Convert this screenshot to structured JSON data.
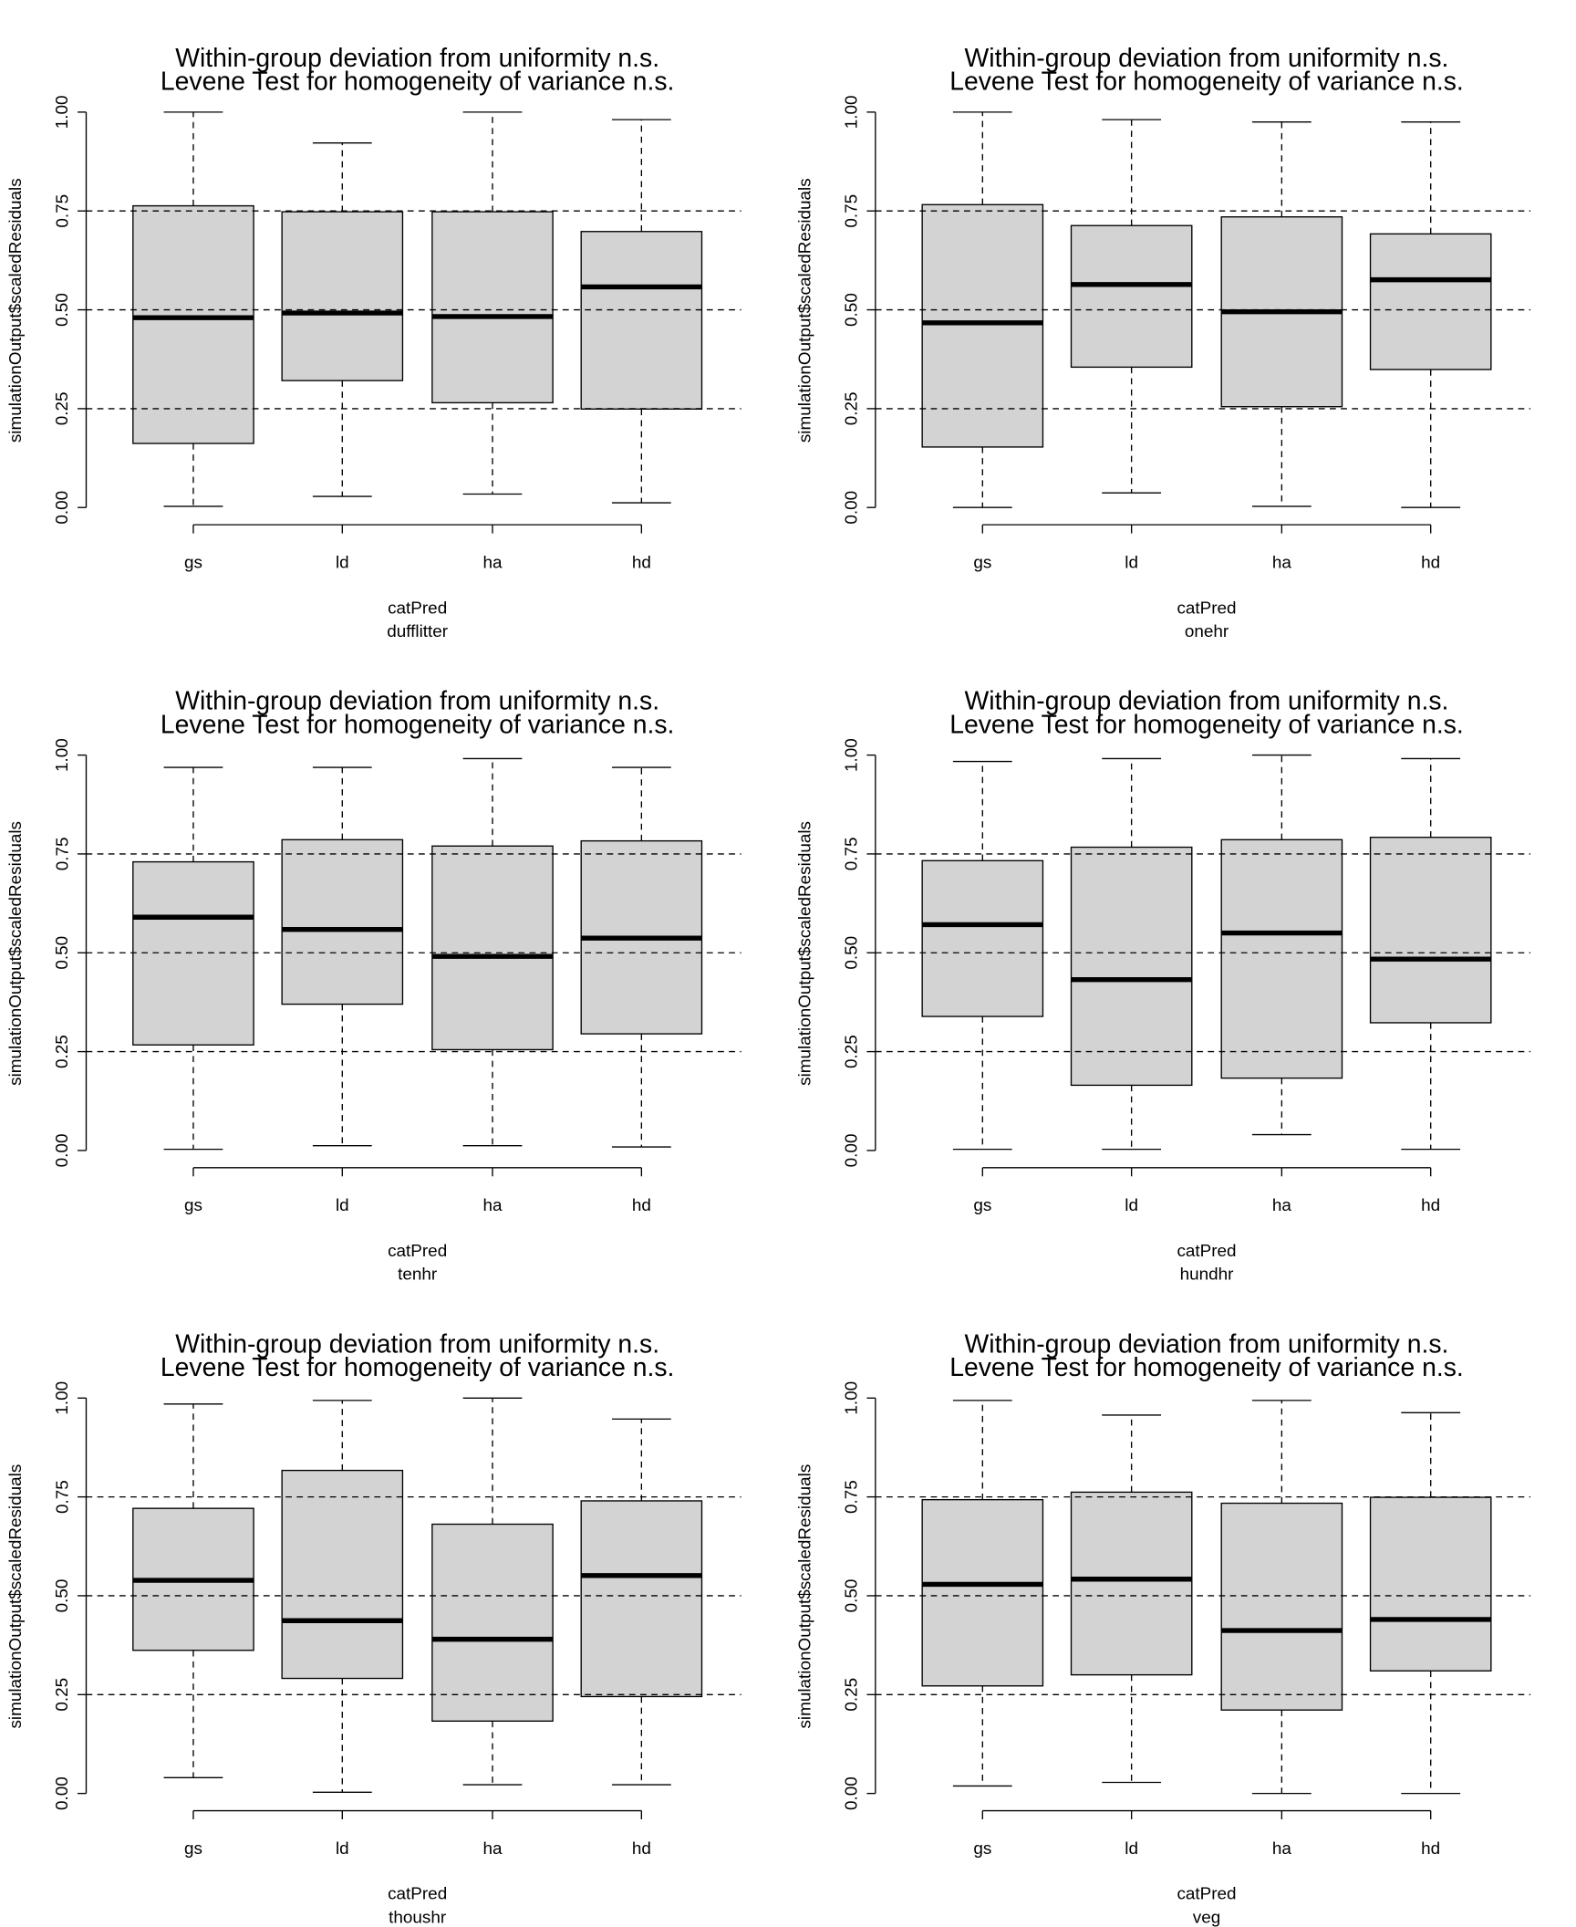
{
  "chart_data": [
    {
      "type": "box",
      "title": [
        "Within-group deviation from uniformity n.s.",
        "Levene Test for homogeneity of variance n.s."
      ],
      "xlabel": "catPred",
      "subtitle": "dufflitter",
      "ylabel": "simulationOutput$scaledResiduals",
      "categories": [
        "gs",
        "ld",
        "ha",
        "hd"
      ],
      "yticks": [
        "0.00",
        "0.25",
        "0.50",
        "0.75",
        "1.00"
      ],
      "ylim": [
        0,
        1
      ],
      "reference_lines": [
        0.25,
        0.5,
        0.75
      ],
      "boxes": [
        {
          "min": 0.003,
          "q1": 0.162,
          "median": 0.48,
          "q3": 0.763,
          "max": 1.0
        },
        {
          "min": 0.028,
          "q1": 0.321,
          "median": 0.492,
          "q3": 0.748,
          "max": 0.922
        },
        {
          "min": 0.034,
          "q1": 0.265,
          "median": 0.483,
          "q3": 0.748,
          "max": 1.0
        },
        {
          "min": 0.012,
          "q1": 0.249,
          "median": 0.558,
          "q3": 0.698,
          "max": 0.981
        }
      ]
    },
    {
      "type": "box",
      "title": [
        "Within-group deviation from uniformity n.s.",
        "Levene Test for homogeneity of variance n.s."
      ],
      "xlabel": "catPred",
      "subtitle": "onehr",
      "ylabel": "simulationOutput$scaledResiduals",
      "categories": [
        "gs",
        "ld",
        "ha",
        "hd"
      ],
      "yticks": [
        "0.00",
        "0.25",
        "0.50",
        "0.75",
        "1.00"
      ],
      "ylim": [
        0,
        1
      ],
      "reference_lines": [
        0.25,
        0.5,
        0.75
      ],
      "boxes": [
        {
          "min": 0.0,
          "q1": 0.153,
          "median": 0.467,
          "q3": 0.766,
          "max": 1.0
        },
        {
          "min": 0.037,
          "q1": 0.355,
          "median": 0.564,
          "q3": 0.713,
          "max": 0.981
        },
        {
          "min": 0.003,
          "q1": 0.255,
          "median": 0.495,
          "q3": 0.735,
          "max": 0.975
        },
        {
          "min": 0.0,
          "q1": 0.349,
          "median": 0.576,
          "q3": 0.692,
          "max": 0.975
        }
      ]
    },
    {
      "type": "box",
      "title": [
        "Within-group deviation from uniformity n.s.",
        "Levene Test for homogeneity of variance n.s."
      ],
      "xlabel": "catPred",
      "subtitle": "tenhr",
      "ylabel": "simulationOutput$scaledResiduals",
      "categories": [
        "gs",
        "ld",
        "ha",
        "hd"
      ],
      "yticks": [
        "0.00",
        "0.25",
        "0.50",
        "0.75",
        "1.00"
      ],
      "ylim": [
        0,
        1
      ],
      "reference_lines": [
        0.25,
        0.5,
        0.75
      ],
      "boxes": [
        {
          "min": 0.003,
          "q1": 0.267,
          "median": 0.59,
          "q3": 0.73,
          "max": 0.969
        },
        {
          "min": 0.012,
          "q1": 0.37,
          "median": 0.559,
          "q3": 0.786,
          "max": 0.969
        },
        {
          "min": 0.012,
          "q1": 0.255,
          "median": 0.491,
          "q3": 0.77,
          "max": 0.991
        },
        {
          "min": 0.009,
          "q1": 0.295,
          "median": 0.537,
          "q3": 0.783,
          "max": 0.969
        }
      ]
    },
    {
      "type": "box",
      "title": [
        "Within-group deviation from uniformity n.s.",
        "Levene Test for homogeneity of variance n.s."
      ],
      "xlabel": "catPred",
      "subtitle": "hundhr",
      "ylabel": "simulationOutput$scaledResiduals",
      "categories": [
        "gs",
        "ld",
        "ha",
        "hd"
      ],
      "yticks": [
        "0.00",
        "0.25",
        "0.50",
        "0.75",
        "1.00"
      ],
      "ylim": [
        0,
        1
      ],
      "reference_lines": [
        0.25,
        0.5,
        0.75
      ],
      "boxes": [
        {
          "min": 0.003,
          "q1": 0.339,
          "median": 0.571,
          "q3": 0.733,
          "max": 0.984
        },
        {
          "min": 0.003,
          "q1": 0.165,
          "median": 0.432,
          "q3": 0.767,
          "max": 0.991
        },
        {
          "min": 0.04,
          "q1": 0.183,
          "median": 0.55,
          "q3": 0.786,
          "max": 1.0
        },
        {
          "min": 0.003,
          "q1": 0.323,
          "median": 0.484,
          "q3": 0.792,
          "max": 0.991
        }
      ]
    },
    {
      "type": "box",
      "title": [
        "Within-group deviation from uniformity n.s.",
        "Levene Test for homogeneity of variance n.s."
      ],
      "xlabel": "catPred",
      "subtitle": "thoushr",
      "ylabel": "simulationOutput$scaledResiduals",
      "categories": [
        "gs",
        "ld",
        "ha",
        "hd"
      ],
      "yticks": [
        "0.00",
        "0.25",
        "0.50",
        "0.75",
        "1.00"
      ],
      "ylim": [
        0,
        1
      ],
      "reference_lines": [
        0.25,
        0.5,
        0.75
      ],
      "boxes": [
        {
          "min": 0.04,
          "q1": 0.362,
          "median": 0.539,
          "q3": 0.721,
          "max": 0.985
        },
        {
          "min": 0.003,
          "q1": 0.291,
          "median": 0.437,
          "q3": 0.817,
          "max": 0.994
        },
        {
          "min": 0.022,
          "q1": 0.183,
          "median": 0.39,
          "q3": 0.681,
          "max": 1.0
        },
        {
          "min": 0.022,
          "q1": 0.245,
          "median": 0.551,
          "q3": 0.74,
          "max": 0.947
        }
      ]
    },
    {
      "type": "box",
      "title": [
        "Within-group deviation from uniformity n.s.",
        "Levene Test for homogeneity of variance n.s."
      ],
      "xlabel": "catPred",
      "subtitle": "veg",
      "ylabel": "simulationOutput$scaledResiduals",
      "categories": [
        "gs",
        "ld",
        "ha",
        "hd"
      ],
      "yticks": [
        "0.00",
        "0.25",
        "0.50",
        "0.75",
        "1.00"
      ],
      "ylim": [
        0,
        1
      ],
      "reference_lines": [
        0.25,
        0.5,
        0.75
      ],
      "boxes": [
        {
          "min": 0.019,
          "q1": 0.272,
          "median": 0.529,
          "q3": 0.743,
          "max": 0.994
        },
        {
          "min": 0.028,
          "q1": 0.3,
          "median": 0.542,
          "q3": 0.762,
          "max": 0.957
        },
        {
          "min": 0.0,
          "q1": 0.211,
          "median": 0.412,
          "q3": 0.734,
          "max": 0.994
        },
        {
          "min": 0.0,
          "q1": 0.31,
          "median": 0.44,
          "q3": 0.749,
          "max": 0.963
        }
      ]
    }
  ],
  "colors": {
    "box_fill": "#d3d3d3",
    "line": "#000000"
  }
}
